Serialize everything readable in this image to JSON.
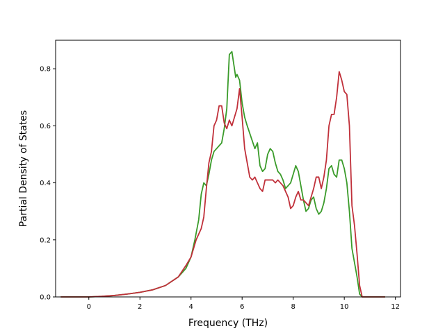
{
  "chart_data": {
    "type": "line",
    "xlabel": "Frequency (THz)",
    "ylabel": "Partial Density of States",
    "xlim": [
      -1.3,
      12.2
    ],
    "ylim": [
      0.0,
      0.9
    ],
    "xticks": [
      0,
      2,
      4,
      6,
      8,
      10,
      12
    ],
    "yticks": [
      0.0,
      0.2,
      0.4,
      0.6,
      0.8
    ],
    "grid": false,
    "series": [
      {
        "color": "#3a9b2a",
        "points": [
          [
            -1.1,
            0.0
          ],
          [
            0.0,
            0.0
          ],
          [
            0.5,
            0.002
          ],
          [
            1.0,
            0.005
          ],
          [
            1.5,
            0.01
          ],
          [
            2.0,
            0.016
          ],
          [
            2.5,
            0.025
          ],
          [
            3.0,
            0.04
          ],
          [
            3.5,
            0.07
          ],
          [
            3.8,
            0.1
          ],
          [
            4.0,
            0.14
          ],
          [
            4.15,
            0.2
          ],
          [
            4.3,
            0.27
          ],
          [
            4.4,
            0.36
          ],
          [
            4.5,
            0.4
          ],
          [
            4.6,
            0.39
          ],
          [
            4.7,
            0.43
          ],
          [
            4.8,
            0.48
          ],
          [
            4.9,
            0.51
          ],
          [
            5.1,
            0.53
          ],
          [
            5.2,
            0.54
          ],
          [
            5.3,
            0.59
          ],
          [
            5.4,
            0.66
          ],
          [
            5.5,
            0.85
          ],
          [
            5.6,
            0.86
          ],
          [
            5.7,
            0.8
          ],
          [
            5.75,
            0.77
          ],
          [
            5.8,
            0.78
          ],
          [
            5.9,
            0.76
          ],
          [
            6.0,
            0.68
          ],
          [
            6.1,
            0.63
          ],
          [
            6.2,
            0.6
          ],
          [
            6.35,
            0.56
          ],
          [
            6.5,
            0.52
          ],
          [
            6.6,
            0.54
          ],
          [
            6.7,
            0.46
          ],
          [
            6.8,
            0.44
          ],
          [
            6.9,
            0.45
          ],
          [
            7.0,
            0.5
          ],
          [
            7.1,
            0.52
          ],
          [
            7.2,
            0.51
          ],
          [
            7.3,
            0.47
          ],
          [
            7.4,
            0.44
          ],
          [
            7.5,
            0.43
          ],
          [
            7.6,
            0.41
          ],
          [
            7.7,
            0.38
          ],
          [
            7.8,
            0.39
          ],
          [
            7.9,
            0.4
          ],
          [
            8.0,
            0.43
          ],
          [
            8.1,
            0.46
          ],
          [
            8.2,
            0.44
          ],
          [
            8.3,
            0.39
          ],
          [
            8.4,
            0.34
          ],
          [
            8.5,
            0.3
          ],
          [
            8.6,
            0.31
          ],
          [
            8.7,
            0.34
          ],
          [
            8.8,
            0.35
          ],
          [
            8.9,
            0.31
          ],
          [
            9.0,
            0.29
          ],
          [
            9.1,
            0.3
          ],
          [
            9.2,
            0.33
          ],
          [
            9.3,
            0.38
          ],
          [
            9.4,
            0.45
          ],
          [
            9.5,
            0.46
          ],
          [
            9.6,
            0.43
          ],
          [
            9.7,
            0.42
          ],
          [
            9.8,
            0.48
          ],
          [
            9.9,
            0.48
          ],
          [
            10.0,
            0.45
          ],
          [
            10.1,
            0.4
          ],
          [
            10.2,
            0.3
          ],
          [
            10.3,
            0.17
          ],
          [
            10.4,
            0.12
          ],
          [
            10.5,
            0.07
          ],
          [
            10.6,
            0.01
          ],
          [
            10.7,
            0.0
          ],
          [
            11.6,
            0.0
          ]
        ]
      },
      {
        "color": "#c0303a",
        "points": [
          [
            -1.1,
            0.0
          ],
          [
            0.0,
            0.0
          ],
          [
            0.5,
            0.002
          ],
          [
            1.0,
            0.005
          ],
          [
            1.5,
            0.01
          ],
          [
            2.0,
            0.016
          ],
          [
            2.5,
            0.025
          ],
          [
            3.0,
            0.04
          ],
          [
            3.5,
            0.07
          ],
          [
            3.8,
            0.11
          ],
          [
            4.0,
            0.14
          ],
          [
            4.2,
            0.2
          ],
          [
            4.4,
            0.24
          ],
          [
            4.5,
            0.28
          ],
          [
            4.6,
            0.38
          ],
          [
            4.7,
            0.47
          ],
          [
            4.8,
            0.51
          ],
          [
            4.9,
            0.6
          ],
          [
            5.0,
            0.62
          ],
          [
            5.1,
            0.67
          ],
          [
            5.2,
            0.67
          ],
          [
            5.3,
            0.61
          ],
          [
            5.4,
            0.59
          ],
          [
            5.5,
            0.62
          ],
          [
            5.6,
            0.6
          ],
          [
            5.7,
            0.63
          ],
          [
            5.8,
            0.66
          ],
          [
            5.9,
            0.73
          ],
          [
            6.0,
            0.63
          ],
          [
            6.1,
            0.52
          ],
          [
            6.2,
            0.47
          ],
          [
            6.3,
            0.42
          ],
          [
            6.4,
            0.41
          ],
          [
            6.5,
            0.42
          ],
          [
            6.6,
            0.4
          ],
          [
            6.7,
            0.38
          ],
          [
            6.8,
            0.37
          ],
          [
            6.9,
            0.41
          ],
          [
            7.0,
            0.41
          ],
          [
            7.1,
            0.41
          ],
          [
            7.2,
            0.41
          ],
          [
            7.3,
            0.4
          ],
          [
            7.4,
            0.41
          ],
          [
            7.5,
            0.4
          ],
          [
            7.6,
            0.39
          ],
          [
            7.7,
            0.37
          ],
          [
            7.8,
            0.35
          ],
          [
            7.9,
            0.31
          ],
          [
            8.0,
            0.32
          ],
          [
            8.1,
            0.35
          ],
          [
            8.2,
            0.37
          ],
          [
            8.3,
            0.34
          ],
          [
            8.4,
            0.34
          ],
          [
            8.5,
            0.33
          ],
          [
            8.6,
            0.32
          ],
          [
            8.7,
            0.35
          ],
          [
            8.8,
            0.38
          ],
          [
            8.9,
            0.42
          ],
          [
            9.0,
            0.42
          ],
          [
            9.1,
            0.38
          ],
          [
            9.2,
            0.42
          ],
          [
            9.3,
            0.48
          ],
          [
            9.4,
            0.6
          ],
          [
            9.5,
            0.64
          ],
          [
            9.6,
            0.64
          ],
          [
            9.7,
            0.7
          ],
          [
            9.8,
            0.79
          ],
          [
            9.9,
            0.76
          ],
          [
            10.0,
            0.72
          ],
          [
            10.1,
            0.71
          ],
          [
            10.2,
            0.6
          ],
          [
            10.3,
            0.32
          ],
          [
            10.4,
            0.25
          ],
          [
            10.5,
            0.15
          ],
          [
            10.6,
            0.04
          ],
          [
            10.7,
            0.0
          ],
          [
            11.6,
            0.0
          ]
        ]
      }
    ]
  }
}
